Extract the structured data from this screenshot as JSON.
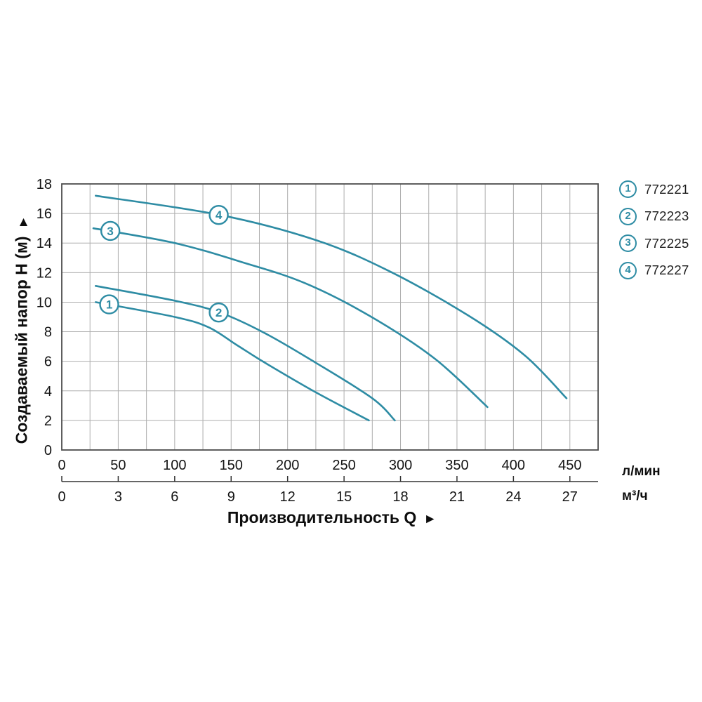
{
  "page": {
    "background": "#ffffff"
  },
  "axis_titles": {
    "y": "Создаваемый напор H (м)",
    "y_arrow": "▲",
    "x": "Производительность Q",
    "x_arrow": "►"
  },
  "units": {
    "primary": "л/мин",
    "secondary": "м³/ч"
  },
  "legend": {
    "items": [
      {
        "num": "1",
        "model": "772221"
      },
      {
        "num": "2",
        "model": "772223"
      },
      {
        "num": "3",
        "model": "772225"
      },
      {
        "num": "4",
        "model": "772227"
      }
    ]
  },
  "chart_data": {
    "type": "line",
    "title": "",
    "xlabel": "Производительность Q",
    "ylabel": "Создаваемый напор H (м)",
    "x_units": [
      "л/мин",
      "м³/ч"
    ],
    "xlim_lmin": [
      0,
      475
    ],
    "ylim": [
      0,
      18
    ],
    "x_ticks_lmin": [
      0,
      50,
      100,
      150,
      200,
      250,
      300,
      350,
      400,
      450
    ],
    "x_ticks_m3h": [
      0,
      3,
      6,
      9,
      12,
      15,
      18,
      21,
      24,
      27
    ],
    "y_ticks": [
      0,
      2,
      4,
      6,
      8,
      10,
      12,
      14,
      16,
      18
    ],
    "grid": {
      "vertical_step_lmin": 25,
      "horizontal_step_m": 2,
      "visible": true
    },
    "legend_position": "right",
    "series": [
      {
        "id": "1",
        "model": "772221",
        "marker_at": [
          42,
          9.85
        ],
        "points": [
          [
            30,
            10.0
          ],
          [
            100,
            9.0
          ],
          [
            130,
            8.3
          ],
          [
            155,
            7.1
          ],
          [
            180,
            5.9
          ],
          [
            225,
            3.9
          ],
          [
            272,
            2.0
          ]
        ]
      },
      {
        "id": "2",
        "model": "772223",
        "marker_at": [
          139,
          9.3
        ],
        "points": [
          [
            30,
            11.1
          ],
          [
            100,
            10.1
          ],
          [
            140,
            9.3
          ],
          [
            180,
            7.9
          ],
          [
            225,
            5.9
          ],
          [
            275,
            3.5
          ],
          [
            295,
            2.0
          ]
        ]
      },
      {
        "id": "3",
        "model": "772225",
        "marker_at": [
          43,
          14.82
        ],
        "points": [
          [
            28,
            15.0
          ],
          [
            100,
            14.0
          ],
          [
            160,
            12.7
          ],
          [
            215,
            11.3
          ],
          [
            272,
            9.1
          ],
          [
            330,
            6.2
          ],
          [
            377,
            2.9
          ]
        ]
      },
      {
        "id": "4",
        "model": "772227",
        "marker_at": [
          139,
          15.9
        ],
        "points": [
          [
            30,
            17.2
          ],
          [
            140,
            15.9
          ],
          [
            225,
            14.2
          ],
          [
            290,
            12.1
          ],
          [
            360,
            9.1
          ],
          [
            410,
            6.4
          ],
          [
            447,
            3.5
          ]
        ]
      }
    ],
    "colors": {
      "curve": "#2e8ca4",
      "grid": "#aeaeae",
      "border": "#4d4d4d",
      "secondary_axis": "#333333",
      "tick_text": "#141414"
    }
  }
}
